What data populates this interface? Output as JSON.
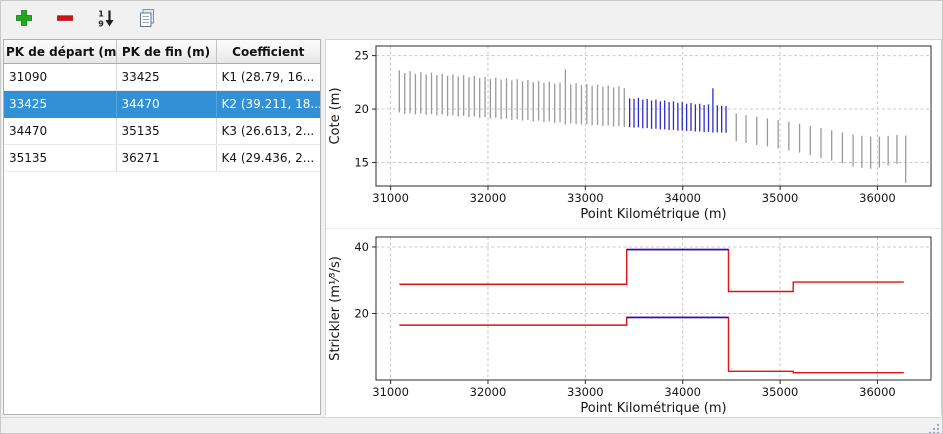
{
  "toolbar": {
    "buttons": [
      {
        "id": "add",
        "icon": "plus-icon",
        "color": "#1faa1f"
      },
      {
        "id": "remove",
        "icon": "minus-icon",
        "color": "#d41414"
      },
      {
        "id": "sort",
        "icon": "sort-numeric-icon",
        "digits": [
          "1",
          "9"
        ]
      },
      {
        "id": "copy",
        "icon": "copy-table-icon"
      }
    ]
  },
  "table": {
    "columns": [
      "PK de départ (m)",
      "PK de fin (m)",
      "Coefficient"
    ],
    "rows": [
      [
        "31090",
        "33425",
        "K1 (28.79, 16..."
      ],
      [
        "33425",
        "34470",
        "K2 (39.211, 18..."
      ],
      [
        "34470",
        "35135",
        "K3 (26.613, 2..."
      ],
      [
        "35135",
        "36271",
        "K4 (29.436, 2..."
      ]
    ],
    "selected_row": 1,
    "selection_color": "#3190d6"
  },
  "chart_data": [
    {
      "type": "bar",
      "title": "",
      "xlabel": "Point Kilométrique (m)",
      "ylabel": "Cote (m)",
      "xlim": [
        30850,
        36550
      ],
      "ylim": [
        12.8,
        25.9
      ],
      "xticks": [
        31000,
        32000,
        33000,
        34000,
        35000,
        36000
      ],
      "yticks": [
        15,
        20,
        25
      ],
      "grid": true,
      "legend": "none",
      "bar_color": "#9a9a9a",
      "selected_color": "#2b2bcf",
      "selected_range": [
        33425,
        34470
      ],
      "sections": [
        [
          31090,
          23.62,
          19.68
        ],
        [
          31145,
          23.38,
          19.55
        ],
        [
          31200,
          23.55,
          19.62
        ],
        [
          31255,
          23.3,
          19.5
        ],
        [
          31310,
          23.45,
          19.58
        ],
        [
          31365,
          23.25,
          19.45
        ],
        [
          31420,
          23.4,
          19.52
        ],
        [
          31475,
          23.18,
          19.4
        ],
        [
          31530,
          23.32,
          19.48
        ],
        [
          31585,
          23.12,
          19.35
        ],
        [
          31640,
          23.25,
          19.42
        ],
        [
          31695,
          23.05,
          19.3
        ],
        [
          31750,
          23.18,
          19.36
        ],
        [
          31805,
          22.98,
          19.24
        ],
        [
          31860,
          23.1,
          19.3
        ],
        [
          31915,
          22.9,
          19.18
        ],
        [
          31970,
          23.02,
          19.25
        ],
        [
          32025,
          22.83,
          19.12
        ],
        [
          32080,
          22.95,
          19.18
        ],
        [
          32135,
          22.76,
          19.05
        ],
        [
          32190,
          22.88,
          19.12
        ],
        [
          32245,
          22.68,
          18.98
        ],
        [
          32300,
          22.8,
          19.05
        ],
        [
          32355,
          22.6,
          18.92
        ],
        [
          32410,
          22.72,
          18.98
        ],
        [
          32465,
          22.52,
          18.85
        ],
        [
          32520,
          22.64,
          18.92
        ],
        [
          32575,
          22.45,
          18.78
        ],
        [
          32630,
          22.56,
          18.85
        ],
        [
          32685,
          22.38,
          18.72
        ],
        [
          32740,
          22.48,
          18.78
        ],
        [
          32795,
          23.7,
          18.55
        ],
        [
          32850,
          22.32,
          18.66
        ],
        [
          32905,
          22.42,
          18.6
        ],
        [
          32960,
          22.25,
          18.55
        ],
        [
          33015,
          22.35,
          18.6
        ],
        [
          33070,
          22.18,
          18.48
        ],
        [
          33125,
          22.28,
          18.52
        ],
        [
          33180,
          22.1,
          18.42
        ],
        [
          33235,
          22.2,
          18.46
        ],
        [
          33290,
          22.03,
          18.36
        ],
        [
          33345,
          22.12,
          18.4
        ],
        [
          33400,
          21.95,
          18.32
        ],
        [
          33455,
          21.0,
          18.3
        ],
        [
          33500,
          20.95,
          18.26
        ],
        [
          33545,
          21.05,
          18.28
        ],
        [
          33590,
          20.88,
          18.2
        ],
        [
          33635,
          20.95,
          18.22
        ],
        [
          33680,
          20.8,
          18.15
        ],
        [
          33725,
          20.88,
          18.16
        ],
        [
          33770,
          20.72,
          18.1
        ],
        [
          33815,
          20.8,
          18.1
        ],
        [
          33860,
          20.65,
          18.04
        ],
        [
          33905,
          20.72,
          18.05
        ],
        [
          33950,
          20.58,
          17.98
        ],
        [
          33995,
          20.65,
          18.0
        ],
        [
          34040,
          20.5,
          17.94
        ],
        [
          34085,
          20.56,
          17.95
        ],
        [
          34130,
          20.44,
          17.9
        ],
        [
          34175,
          20.5,
          17.9
        ],
        [
          34220,
          20.38,
          17.85
        ],
        [
          34265,
          20.44,
          17.86
        ],
        [
          34310,
          21.95,
          17.8
        ],
        [
          34355,
          20.35,
          17.82
        ],
        [
          34400,
          20.32,
          17.8
        ],
        [
          34445,
          20.28,
          17.78
        ],
        [
          34550,
          19.6,
          17.0
        ],
        [
          34650,
          19.42,
          16.82
        ],
        [
          34760,
          19.28,
          16.64
        ],
        [
          34870,
          19.12,
          16.5
        ],
        [
          34980,
          18.98,
          16.32
        ],
        [
          35090,
          18.82,
          16.12
        ],
        [
          35200,
          18.62,
          15.92
        ],
        [
          35310,
          18.42,
          15.7
        ],
        [
          35420,
          18.22,
          15.42
        ],
        [
          35530,
          18.02,
          15.18
        ],
        [
          35640,
          17.82,
          14.92
        ],
        [
          35750,
          17.62,
          14.62
        ],
        [
          35840,
          17.5,
          14.48
        ],
        [
          35930,
          17.42,
          14.42
        ],
        [
          36020,
          17.42,
          14.52
        ],
        [
          36110,
          17.5,
          14.7
        ],
        [
          36200,
          17.58,
          14.88
        ],
        [
          36290,
          17.52,
          13.1
        ]
      ]
    },
    {
      "type": "line",
      "title": "",
      "xlabel": "Point Kilométrique (m)",
      "ylabel": "Strickler (m¹⁄³/s)",
      "xlim": [
        30850,
        36550
      ],
      "ylim": [
        0,
        43
      ],
      "xticks": [
        31000,
        32000,
        33000,
        34000,
        35000,
        36000
      ],
      "yticks": [
        20,
        40
      ],
      "grid": true,
      "legend": "none",
      "line_color": "#e41010",
      "selected_color": "#1515d0",
      "zones": [
        {
          "x0": 31090,
          "x1": 33425,
          "k_minor": 28.79,
          "k_major": 16.5,
          "selected": false
        },
        {
          "x0": 33425,
          "x1": 34470,
          "k_minor": 39.211,
          "k_major": 18.8,
          "selected": true
        },
        {
          "x0": 34470,
          "x1": 35135,
          "k_minor": 26.613,
          "k_major": 2.6,
          "selected": false
        },
        {
          "x0": 35135,
          "x1": 36271,
          "k_minor": 29.436,
          "k_major": 2.2,
          "selected": false
        }
      ]
    }
  ]
}
